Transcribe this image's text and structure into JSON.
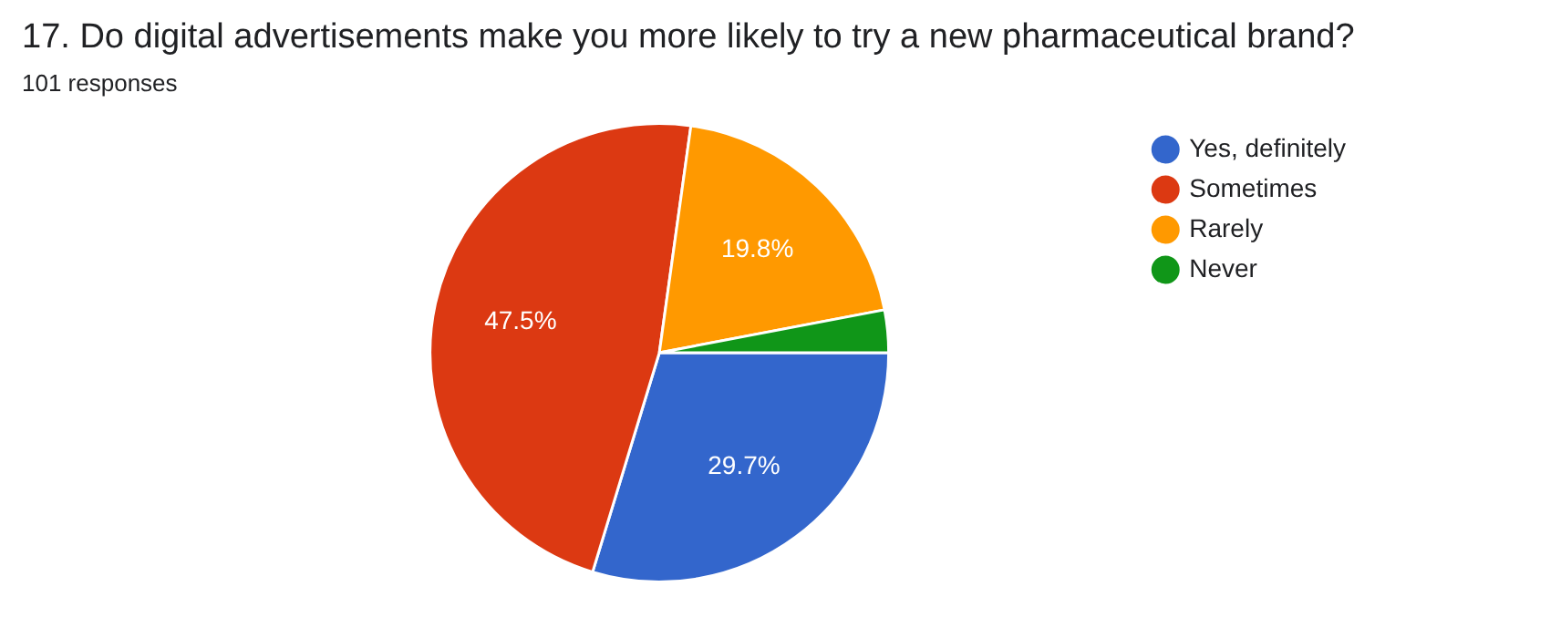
{
  "chart_data": {
    "type": "pie",
    "title": "17. Do digital advertisements make you more likely to try a new pharmaceutical brand?",
    "subtitle": "101 responses",
    "categories": [
      "Yes, definitely",
      "Sometimes",
      "Rarely",
      "Never"
    ],
    "values": [
      29.7,
      47.5,
      19.8,
      3.0
    ],
    "colors": [
      "#3366cc",
      "#dc3912",
      "#ff9900",
      "#109618"
    ],
    "value_labels": [
      "29.7%",
      "47.5%",
      "19.8%",
      null
    ],
    "legend": "right"
  }
}
